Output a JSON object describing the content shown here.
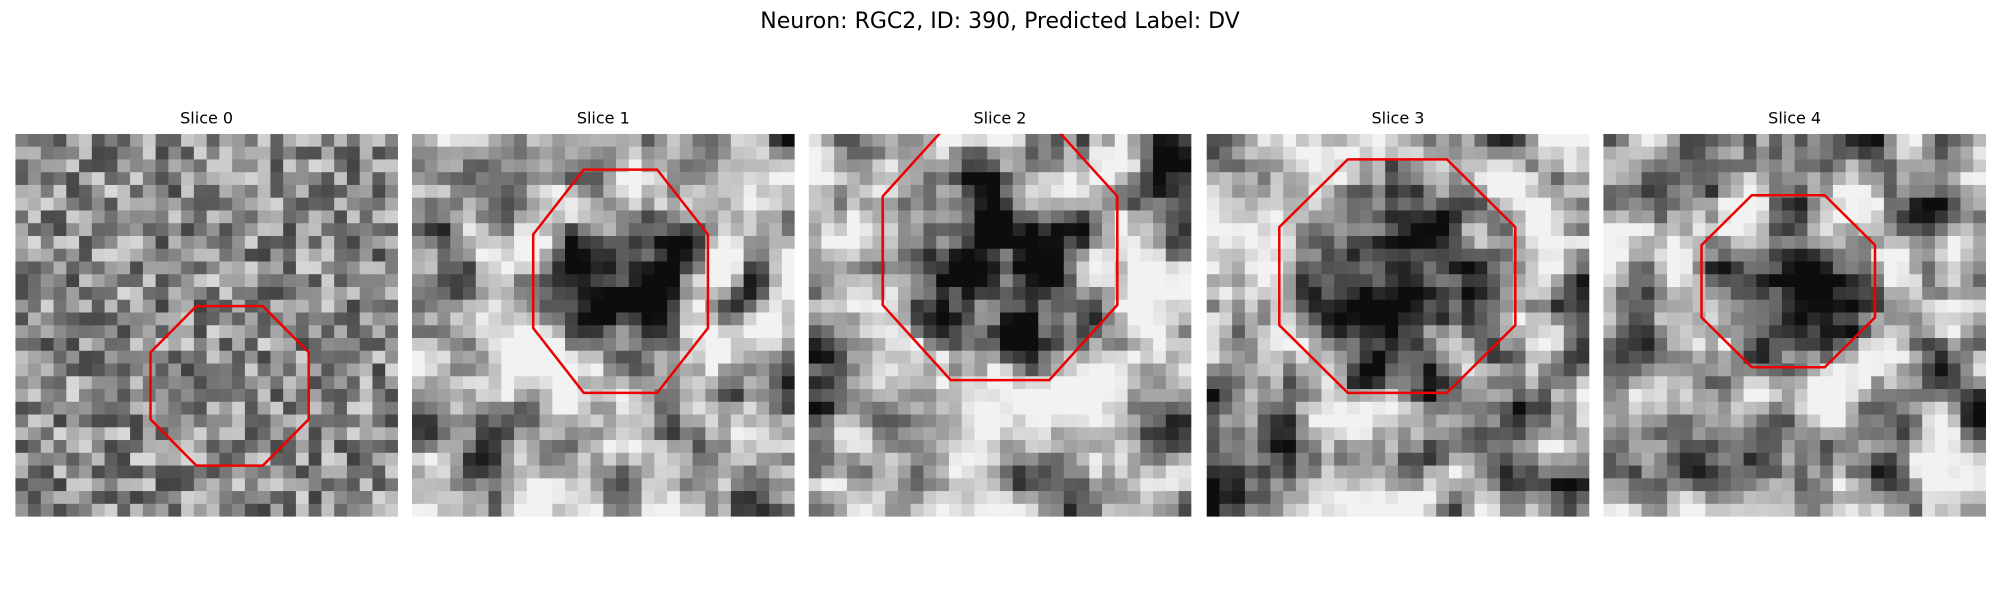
{
  "title": "Neuron: RGC2, ID: 390, Predicted Label: DV",
  "panels": [
    {
      "title": "Slice 0"
    },
    {
      "title": "Slice 1"
    },
    {
      "title": "Slice 2"
    },
    {
      "title": "Slice 3"
    },
    {
      "title": "Slice 4"
    }
  ]
}
